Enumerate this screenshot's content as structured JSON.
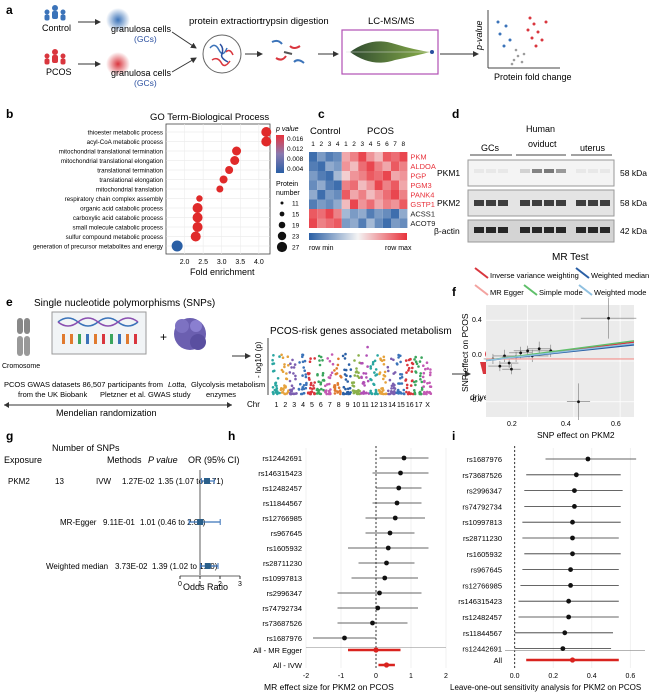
{
  "panels": {
    "a": "a",
    "b": "b",
    "c": "c",
    "d": "d",
    "e": "e",
    "f": "f",
    "g": "g",
    "h": "h",
    "i": "i"
  },
  "panel_a": {
    "control": "Control",
    "pcos": "PCOS",
    "gc1": "granulosa cells",
    "gc1b": "(GCs)",
    "gc2": "granulosa cells",
    "gc2b": "(GCs)",
    "step1": "protein extraction",
    "step2": "trypsin digestion",
    "step3": "LC-MS/MS",
    "volcano_y": "p-value",
    "volcano_x": "Protein fold change"
  },
  "panel_b": {
    "title": "GO Term-Biological Process",
    "xlabel": "Fold enrichment",
    "legend_p": "p value",
    "legend_p_ticks": [
      "0.016",
      "0.012",
      "0.008",
      "0.004"
    ],
    "legend_n": "Protein",
    "legend_n2": "number",
    "legend_n_ticks": [
      "11",
      "15",
      "19",
      "23",
      "27"
    ]
  },
  "panel_c": {
    "control": "Control",
    "pcos": "PCOS",
    "cols": [
      "1",
      "2",
      "3",
      "4",
      "1",
      "2",
      "3",
      "4",
      "5",
      "6",
      "7",
      "8"
    ],
    "genes": [
      "PKM",
      "ALDOA",
      "PGP",
      "PGM3",
      "PANK4",
      "GSTP1",
      "ACSS1",
      "ACOT9"
    ],
    "row_min": "row min",
    "row_max": "row max",
    "colors": {
      "up": "#e8333c",
      "down": "#2a5fa5"
    }
  },
  "panel_d": {
    "header": "Human",
    "groups": [
      "GCs",
      "oviduct",
      "uterus"
    ],
    "rows": [
      "PKM1",
      "PKM2",
      "β-actin"
    ],
    "kda": [
      "58 kDa",
      "58 kDa",
      "42 kDa"
    ]
  },
  "panel_e": {
    "title": "Single nucleotide polymorphisms (SNPs)",
    "chromosome": "Cromosome",
    "text1": "PCOS GWAS datasets  86,507 participants from",
    "text1b": "Lotta,",
    "text1c": "Glycolysis metabolism",
    "text2": "from the UK Biobank",
    "text2b": "Pletzner et al. GWAS study",
    "text2c": "enzymes",
    "mr": "Mendelian randomization",
    "manhattan_title": "PCOS-risk genes associated metabolism",
    "ylabel": "- log10 (p)",
    "chr_label": "Chr",
    "chr": [
      "1",
      "2",
      "3",
      "4",
      "5",
      "6",
      "7",
      "8",
      "9",
      "10",
      "11",
      "12",
      "13",
      "14",
      "15",
      "16",
      "17",
      "X"
    ],
    "drive": "drive PCOS?"
  },
  "panel_f": {
    "title": "MR Test",
    "legend": [
      "Inverse variance weighting",
      "Weighted median",
      "MR Egger",
      "Simple mode",
      "Weighted mode"
    ],
    "ylabel": "SNP effect on PCOS",
    "xlabel": "SNP effect on PKM2",
    "yticks": [
      "0.4",
      "0.0",
      "-0.4"
    ],
    "xticks": [
      "0.2",
      "0.4",
      "0.6"
    ]
  },
  "panel_g": {
    "headers": [
      "Exposure",
      "Number of SNPs",
      "Methods",
      "P value",
      "OR (95% CI)"
    ],
    "exposure": "PKM2",
    "nsnps": "13",
    "rows": [
      {
        "method": "IVW",
        "pval": "1.27E-02",
        "or": "1.35 (1.07 to 1.71)"
      },
      {
        "method": "MR-Egger",
        "pval": "9.11E-01",
        "or": "1.01 (0.46 to 2.01)"
      },
      {
        "method": "Weighted median",
        "pval": "3.73E-02",
        "or": "1.39 (1.02 to 1.90)"
      }
    ],
    "xlabel": "Odds Ratio",
    "xticks": [
      "0",
      "1",
      "2",
      "3"
    ]
  },
  "panel_h": {
    "snps": [
      "rs12442691",
      "rs146315423",
      "rs12482457",
      "rs11844567",
      "rs12766985",
      "rs967645",
      "rs1605932",
      "rs28711230",
      "rs10997813",
      "rs2996347",
      "rs74792734",
      "rs73687526",
      "rs1687976"
    ],
    "summary": [
      "All - MR Egger",
      "All - IVW"
    ],
    "xlabel": "MR effect size for PKM2 on PCOS",
    "xticks": [
      "-2",
      "-1",
      "0",
      "1",
      "2"
    ]
  },
  "panel_i": {
    "snps": [
      "rs1687976",
      "rs73687526",
      "rs2996347",
      "rs74792734",
      "rs10997813",
      "rs28711230",
      "rs1605932",
      "rs967645",
      "rs12766985",
      "rs146315423",
      "rs12482457",
      "rs11844567",
      "rs12442691"
    ],
    "summary": "All",
    "xlabel": "Leave-one-out sensitivity analysis for PKM2 on PCOS",
    "xticks": [
      "0.0",
      "0.2",
      "0.4",
      "0.6"
    ]
  },
  "chart_data": [
    {
      "type": "scatter",
      "panel": "b",
      "title": "GO Term-Biological Process",
      "xlabel": "Fold enrichment",
      "xlim": [
        1.5,
        4.3
      ],
      "categories": [
        "thioester metabolic process",
        "acyl-CoA metabolic process",
        "mitochondrial translational termination",
        "mitochondrial translational elongation",
        "translational termination",
        "translational elongation",
        "mitochondrial translation",
        "respiratory chain complex assembly",
        "organic acid catabolic process",
        "carboxylic acid catabolic process",
        "small molecule catabolic process",
        "sulfur compound metabolic process",
        "generation of precursor metabolites and energy"
      ],
      "x": [
        4.2,
        4.2,
        3.4,
        3.35,
        3.2,
        3.05,
        2.95,
        2.4,
        2.35,
        2.35,
        2.35,
        2.3,
        1.8
      ],
      "xticks": [
        "2.0",
        "2.5",
        "3.0",
        "3.5",
        "4.0"
      ]
    },
    {
      "type": "scatter",
      "panel": "h",
      "xlabel": "MR effect size for PKM2 on PCOS",
      "xlim": [
        -2,
        2
      ],
      "categories": [
        "rs12442691",
        "rs146315423",
        "rs12482457",
        "rs11844567",
        "rs12766985",
        "rs967645",
        "rs1605932",
        "rs28711230",
        "rs10997813",
        "rs2996347",
        "rs74792734",
        "rs73687526",
        "rs1687976",
        "All - MR Egger",
        "All - IVW"
      ],
      "est": [
        0.8,
        0.7,
        0.65,
        0.6,
        0.55,
        0.4,
        0.35,
        0.3,
        0.25,
        0.1,
        0.05,
        -0.1,
        -0.9,
        0.0,
        0.3
      ],
      "lo": [
        0.1,
        -0.1,
        0.0,
        -0.1,
        -0.3,
        -0.3,
        -0.8,
        -0.5,
        -0.7,
        -1.1,
        -1.1,
        -1.1,
        -1.8,
        -0.8,
        0.07
      ],
      "hi": [
        1.5,
        1.5,
        1.3,
        1.3,
        1.4,
        1.1,
        1.5,
        1.1,
        1.2,
        1.3,
        1.2,
        0.9,
        0.0,
        0.7,
        0.54
      ]
    },
    {
      "type": "scatter",
      "panel": "i",
      "xlabel": "Leave-one-out sensitivity analysis for PKM2 on PCOS",
      "xlim": [
        -0.05,
        0.65
      ],
      "categories": [
        "rs1687976",
        "rs73687526",
        "rs2996347",
        "rs74792734",
        "rs10997813",
        "rs28711230",
        "rs1605932",
        "rs967645",
        "rs12766985",
        "rs146315423",
        "rs12482457",
        "rs11844567",
        "rs12442691",
        "All"
      ],
      "est": [
        0.38,
        0.32,
        0.31,
        0.31,
        0.3,
        0.3,
        0.3,
        0.29,
        0.29,
        0.28,
        0.28,
        0.26,
        0.25,
        0.3
      ],
      "lo": [
        0.16,
        0.06,
        0.05,
        0.05,
        0.04,
        0.04,
        0.05,
        0.04,
        0.03,
        0.02,
        0.02,
        0.0,
        0.0,
        0.06
      ],
      "hi": [
        0.63,
        0.55,
        0.56,
        0.55,
        0.55,
        0.54,
        0.55,
        0.54,
        0.54,
        0.54,
        0.54,
        0.51,
        0.5,
        0.54
      ]
    },
    {
      "type": "scatter",
      "panel": "g",
      "xlabel": "Odds Ratio",
      "xlim": [
        0,
        3
      ],
      "categories": [
        "IVW",
        "MR-Egger",
        "Weighted median"
      ],
      "est": [
        1.35,
        1.01,
        1.39
      ],
      "lo": [
        1.07,
        0.46,
        1.02
      ],
      "hi": [
        1.71,
        2.01,
        1.9
      ]
    }
  ]
}
